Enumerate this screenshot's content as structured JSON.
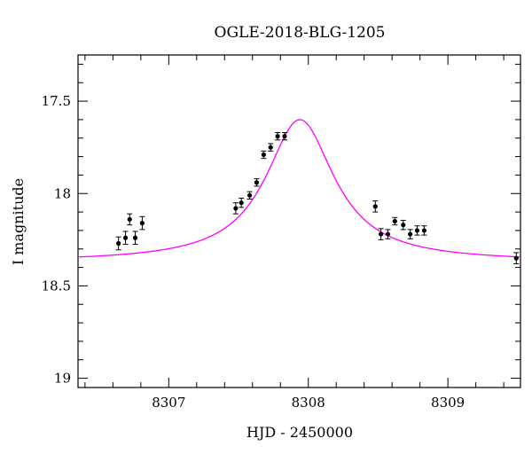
{
  "chart_data": {
    "type": "scatter",
    "title": "OGLE-2018-BLG-1205",
    "xlabel": "HJD - 2450000",
    "ylabel": "I magnitude",
    "xlim": [
      8306.35,
      8309.52
    ],
    "ylim": [
      19.05,
      17.25
    ],
    "y_inverted": true,
    "x_major_ticks": [
      8307,
      8308,
      8309
    ],
    "x_tick_labels": [
      "8307",
      "8308",
      "8309"
    ],
    "x_minor_step": 0.2,
    "y_major_ticks": [
      17.5,
      18,
      18.5,
      19
    ],
    "y_tick_labels": [
      "17.5",
      "18",
      "18.5",
      "19"
    ],
    "y_minor_step": 0.1,
    "grid": false,
    "legend": "none",
    "series": [
      {
        "type": "scatter_errorbar",
        "color": "#000000",
        "points": [
          {
            "x": 8306.64,
            "y": 18.27,
            "err": 0.035
          },
          {
            "x": 8306.69,
            "y": 18.24,
            "err": 0.035
          },
          {
            "x": 8306.72,
            "y": 18.14,
            "err": 0.03
          },
          {
            "x": 8306.76,
            "y": 18.24,
            "err": 0.035
          },
          {
            "x": 8306.81,
            "y": 18.16,
            "err": 0.035
          },
          {
            "x": 8307.48,
            "y": 18.08,
            "err": 0.03
          },
          {
            "x": 8307.52,
            "y": 18.05,
            "err": 0.025
          },
          {
            "x": 8307.58,
            "y": 18.01,
            "err": 0.02
          },
          {
            "x": 8307.63,
            "y": 17.94,
            "err": 0.02
          },
          {
            "x": 8307.68,
            "y": 17.79,
            "err": 0.02
          },
          {
            "x": 8307.73,
            "y": 17.75,
            "err": 0.02
          },
          {
            "x": 8307.78,
            "y": 17.69,
            "err": 0.02
          },
          {
            "x": 8307.83,
            "y": 17.69,
            "err": 0.02
          },
          {
            "x": 8308.48,
            "y": 18.07,
            "err": 0.03
          },
          {
            "x": 8308.52,
            "y": 18.22,
            "err": 0.03
          },
          {
            "x": 8308.57,
            "y": 18.22,
            "err": 0.025
          },
          {
            "x": 8308.62,
            "y": 18.15,
            "err": 0.02
          },
          {
            "x": 8308.68,
            "y": 18.17,
            "err": 0.025
          },
          {
            "x": 8308.73,
            "y": 18.22,
            "err": 0.025
          },
          {
            "x": 8308.78,
            "y": 18.2,
            "err": 0.025
          },
          {
            "x": 8308.83,
            "y": 18.2,
            "err": 0.025
          },
          {
            "x": 8309.49,
            "y": 18.35,
            "err": 0.03
          }
        ]
      },
      {
        "type": "line",
        "color": "#ff00ff",
        "model": {
          "t0": 8307.94,
          "tau": 0.3,
          "baseline": 18.37,
          "peak": 17.6
        }
      }
    ]
  }
}
